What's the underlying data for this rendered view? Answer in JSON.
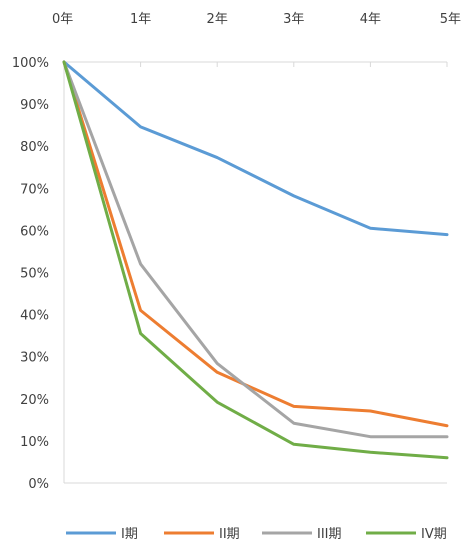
{
  "chart_data": {
    "type": "line",
    "x": [
      "0年",
      "1年",
      "2年",
      "3年",
      "4年",
      "5年"
    ],
    "x_axis_position": "top",
    "y_tick_labels": [
      "0%",
      "10%",
      "20%",
      "30%",
      "40%",
      "50%",
      "60%",
      "70%",
      "80%",
      "90%",
      "100%"
    ],
    "ylim": [
      0,
      100
    ],
    "unit": "%",
    "grid": false,
    "legend_position": "bottom",
    "series": [
      {
        "name": "I期",
        "color": "#5B9BD5",
        "values": [
          100,
          84.6,
          77.3,
          68.2,
          60.5,
          59.0
        ]
      },
      {
        "name": "II期",
        "color": "#ED7D31",
        "values": [
          100,
          41.0,
          26.3,
          18.2,
          17.1,
          13.6
        ]
      },
      {
        "name": "III期",
        "color": "#A5A5A5",
        "values": [
          100,
          52.0,
          28.4,
          14.2,
          11.0,
          11.0
        ]
      },
      {
        "name": "IV期",
        "color": "#70AD47",
        "values": [
          100,
          35.5,
          19.2,
          9.2,
          7.3,
          6.0
        ]
      }
    ]
  }
}
